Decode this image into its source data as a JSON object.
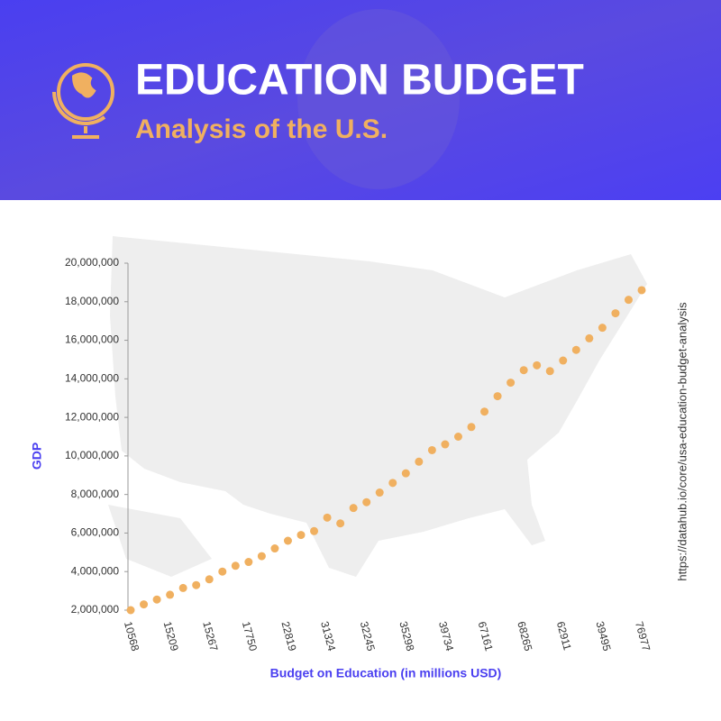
{
  "chart_data": {
    "type": "scatter",
    "title": "EDUCATION BUDGET",
    "subtitle": "Analysis of the U.S.",
    "x_label": "Budget on Education (in millions USD)",
    "y_label": "GDP",
    "source": "https://datahub.io/core/usa-education-budget-analysis",
    "color": "#f0b060",
    "categories": [
      "10568",
      null,
      null,
      "15209",
      null,
      null,
      "15267",
      null,
      null,
      "17750",
      null,
      null,
      "22819",
      null,
      null,
      "31324",
      null,
      null,
      "32245",
      null,
      null,
      "35298",
      null,
      null,
      "39734",
      null,
      null,
      "67161",
      null,
      null,
      "68265",
      null,
      null,
      "62911",
      null,
      null,
      "39495",
      null,
      null,
      "76977"
    ],
    "values": [
      2000000,
      2300000,
      2550000,
      2800000,
      3150000,
      3300000,
      3600000,
      4000000,
      4300000,
      4500000,
      4800000,
      5200000,
      5600000,
      5900000,
      6100000,
      6800000,
      6500000,
      7300000,
      7600000,
      8100000,
      8600000,
      9100000,
      9700000,
      10300000,
      10600000,
      11000000,
      11500000,
      12300000,
      13100000,
      13800000,
      14450000,
      14700000,
      14400000,
      14950000,
      15500000,
      16100000,
      16650000,
      17400000,
      18100000,
      18600000
    ],
    "ylim": [
      2000000,
      20000000
    ],
    "yticks": [
      {
        "value": 2000000,
        "label": "2,000,000"
      },
      {
        "value": 4000000,
        "label": "4,000,000"
      },
      {
        "value": 6000000,
        "label": "6,000,000"
      },
      {
        "value": 8000000,
        "label": "8,000,000"
      },
      {
        "value": 10000000,
        "label": "10,000,000"
      },
      {
        "value": 12000000,
        "label": "12,000,000"
      },
      {
        "value": 14000000,
        "label": "14,000,000"
      },
      {
        "value": 16000000,
        "label": "16,000,000"
      },
      {
        "value": 18000000,
        "label": "18,000,000"
      },
      {
        "value": 20000000,
        "label": "20,000,000"
      }
    ]
  }
}
